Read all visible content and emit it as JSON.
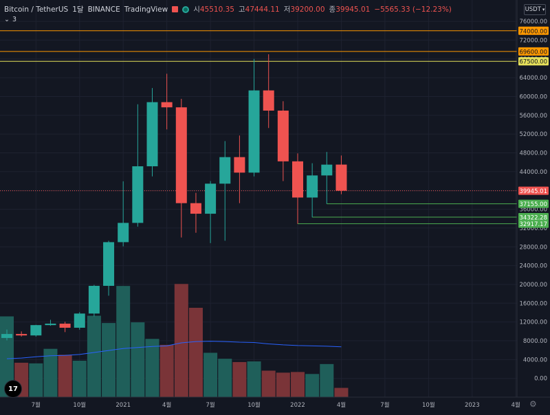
{
  "header": {
    "symbol": "Bitcoin / TetherUS",
    "interval": "1달",
    "exchange": "BINANCE",
    "provider": "TradingView",
    "open_label": "시",
    "open": "45510.35",
    "high_label": "고",
    "high": "47444.11",
    "low_label": "저",
    "low": "39200.00",
    "close_label": "종",
    "close": "39945.01",
    "change": "−5565.33 (−12.23%)",
    "indicator_count": "3",
    "currency": "USDT"
  },
  "colors": {
    "background": "#131722",
    "up": "#26a69a",
    "down": "#ef5350",
    "volume_up": "#1f5f5a",
    "volume_down": "#7a3438",
    "ma": "#2962ff",
    "axis_text": "#b2b5be",
    "hline_orange": "#ff9800",
    "hline_yellow": "#e5e05a",
    "hline_green": "#4caf50"
  },
  "chart_data": {
    "type": "candlestick",
    "ylim": [
      -2000,
      80000
    ],
    "y_ticks": [
      76000,
      72000,
      68000,
      64000,
      60000,
      56000,
      52000,
      48000,
      44000,
      40000,
      36000,
      32000,
      28000,
      24000,
      20000,
      16000,
      12000,
      8000,
      4000,
      0
    ],
    "y_tick_labels": [
      "76000.00",
      "72000.00",
      "68000.00",
      "64000.00",
      "60000.00",
      "56000.00",
      "52000.00",
      "48000.00",
      "44000.00",
      "40000.00",
      "36000.00",
      "32000.00",
      "28000.00",
      "24000.00",
      "20000.00",
      "16000.00",
      "12000.00",
      "8000.00",
      "4000.00",
      "0.00"
    ],
    "x_ticks": [
      {
        "index": 2,
        "label": "7월"
      },
      {
        "index": 5,
        "label": "10월"
      },
      {
        "index": 8,
        "label": "2021"
      },
      {
        "index": 11,
        "label": "4월"
      },
      {
        "index": 14,
        "label": "7월"
      },
      {
        "index": 17,
        "label": "10월"
      },
      {
        "index": 20,
        "label": "2022"
      },
      {
        "index": 23,
        "label": "4월"
      },
      {
        "index": 26,
        "label": "7월"
      },
      {
        "index": 29,
        "label": "10월"
      },
      {
        "index": 32,
        "label": "2023"
      },
      {
        "index": 35,
        "label": "4월"
      }
    ],
    "candles": [
      {
        "o": 8600,
        "h": 10400,
        "l": 8100,
        "c": 9450,
        "v": 12200
      },
      {
        "o": 9450,
        "h": 10000,
        "l": 8900,
        "c": 9140,
        "v": 5200
      },
      {
        "o": 9140,
        "h": 11400,
        "l": 8900,
        "c": 11340,
        "v": 5100
      },
      {
        "o": 11340,
        "h": 12470,
        "l": 11200,
        "c": 11650,
        "v": 7300
      },
      {
        "o": 11650,
        "h": 12050,
        "l": 9850,
        "c": 10780,
        "v": 6400
      },
      {
        "o": 10780,
        "h": 14100,
        "l": 10370,
        "c": 13800,
        "v": 5500
      },
      {
        "o": 13800,
        "h": 19900,
        "l": 13200,
        "c": 19700,
        "v": 12300
      },
      {
        "o": 19700,
        "h": 29300,
        "l": 17600,
        "c": 29000,
        "v": 11200
      },
      {
        "o": 29000,
        "h": 41950,
        "l": 28100,
        "c": 33100,
        "v": 16800
      },
      {
        "o": 33100,
        "h": 58350,
        "l": 32300,
        "c": 45150,
        "v": 11300
      },
      {
        "o": 45150,
        "h": 61800,
        "l": 43000,
        "c": 58800,
        "v": 8800
      },
      {
        "o": 58800,
        "h": 64850,
        "l": 53000,
        "c": 57700,
        "v": 7900
      },
      {
        "o": 57700,
        "h": 59500,
        "l": 30000,
        "c": 37300,
        "v": 17100
      },
      {
        "o": 37300,
        "h": 39500,
        "l": 31000,
        "c": 35050,
        "v": 13500
      },
      {
        "o": 35050,
        "h": 42000,
        "l": 28800,
        "c": 41450,
        "v": 6700
      },
      {
        "o": 41450,
        "h": 50500,
        "l": 29300,
        "c": 47100,
        "v": 5800
      },
      {
        "o": 47100,
        "h": 51700,
        "l": 37300,
        "c": 43800,
        "v": 5300
      },
      {
        "o": 43800,
        "h": 68000,
        "l": 43000,
        "c": 61300,
        "v": 5400
      },
      {
        "o": 61300,
        "h": 69000,
        "l": 53300,
        "c": 57000,
        "v": 4000
      },
      {
        "o": 57000,
        "h": 59000,
        "l": 42000,
        "c": 46200,
        "v": 3700
      },
      {
        "o": 46200,
        "h": 47900,
        "l": 32900,
        "c": 38500,
        "v": 3800
      },
      {
        "o": 38500,
        "h": 45800,
        "l": 34300,
        "c": 43200,
        "v": 3500
      },
      {
        "o": 43200,
        "h": 48200,
        "l": 37150,
        "c": 45500,
        "v": 5000
      },
      {
        "o": 45510.35,
        "h": 47444.11,
        "l": 39200,
        "c": 39945.01,
        "v": 1400
      }
    ],
    "volume_ma": [
      5800,
      5900,
      6100,
      6250,
      6300,
      6450,
      6750,
      7050,
      7350,
      7500,
      7650,
      7750,
      8200,
      8400,
      8450,
      8400,
      8300,
      8250,
      8050,
      7900,
      7800,
      7750,
      7700,
      7600
    ],
    "volume_scale_max": 60000,
    "price_lines": [
      {
        "value": 74000,
        "label": "74000.00",
        "color": "#ff9800",
        "start_index": -1
      },
      {
        "value": 69600,
        "label": "69600.00",
        "color": "#ff9800",
        "start_index": -1
      },
      {
        "value": 67500,
        "label": "67500.00",
        "color": "#e5e05a",
        "start_index": -1
      },
      {
        "value": 37155,
        "label": "37155.00",
        "color": "#4caf50",
        "start_index": 22
      },
      {
        "value": 34322.28,
        "label": "34322.28",
        "color": "#4caf50",
        "start_index": 21
      },
      {
        "value": 32917.17,
        "label": "32917.17",
        "color": "#4caf50",
        "start_index": 20
      }
    ],
    "last_price": {
      "value": 39945.01,
      "label": "39945.01"
    }
  }
}
